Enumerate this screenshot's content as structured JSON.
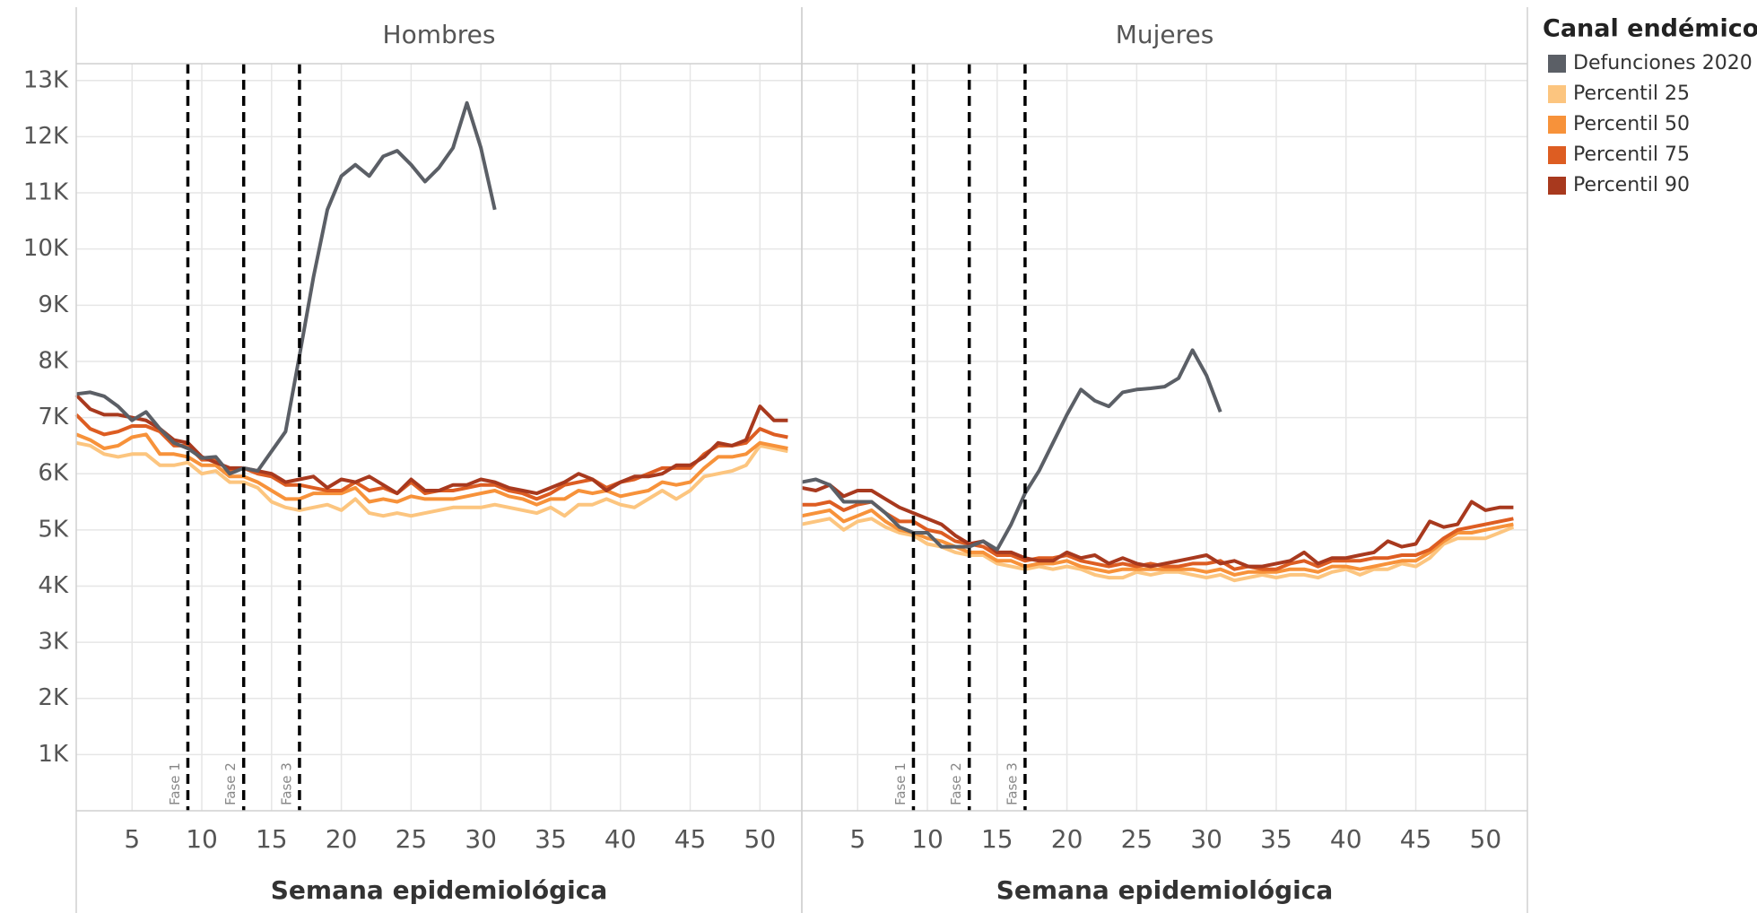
{
  "chart_data": [
    {
      "type": "line",
      "title": "Hombres",
      "x_label": "Semana epidemiológica",
      "legend_title": "Canal endémico",
      "x": [
        1,
        2,
        3,
        4,
        5,
        6,
        7,
        8,
        9,
        10,
        11,
        12,
        13,
        14,
        15,
        16,
        17,
        18,
        19,
        20,
        21,
        22,
        23,
        24,
        25,
        26,
        27,
        28,
        29,
        30,
        31,
        32,
        33,
        34,
        35,
        36,
        37,
        38,
        39,
        40,
        41,
        42,
        43,
        44,
        45,
        46,
        47,
        48,
        49,
        50,
        51,
        52
      ],
      "xlim": [
        1,
        53
      ],
      "xticks": [
        5,
        10,
        15,
        20,
        25,
        30,
        35,
        40,
        45,
        50
      ],
      "ylim": [
        0,
        13300
      ],
      "yticks": [
        {
          "value": 1000,
          "label": "1K"
        },
        {
          "value": 2000,
          "label": "2K"
        },
        {
          "value": 3000,
          "label": "3K"
        },
        {
          "value": 4000,
          "label": "4K"
        },
        {
          "value": 5000,
          "label": "5K"
        },
        {
          "value": 6000,
          "label": "6K"
        },
        {
          "value": 7000,
          "label": "7K"
        },
        {
          "value": 8000,
          "label": "8K"
        },
        {
          "value": 9000,
          "label": "9K"
        },
        {
          "value": 10000,
          "label": "10K"
        },
        {
          "value": 11000,
          "label": "11K"
        },
        {
          "value": 12000,
          "label": "12K"
        },
        {
          "value": 13000,
          "label": "13K"
        }
      ],
      "grid": true,
      "phases": [
        {
          "x": 9,
          "label": "Fase 1"
        },
        {
          "x": 13,
          "label": "Fase 2"
        },
        {
          "x": 17,
          "label": "Fase 3"
        }
      ],
      "series": [
        {
          "name": "Defunciones 2020",
          "color": "#5b5f66",
          "values": [
            7420,
            7450,
            7380,
            7200,
            6950,
            7100,
            6800,
            6550,
            6450,
            6280,
            6300,
            6000,
            6100,
            6050,
            6400,
            6750,
            8100,
            9500,
            10700,
            11300,
            11500,
            11300,
            11650,
            11750,
            11500,
            11200,
            11450,
            11800,
            12600,
            11800,
            10700,
            null,
            null,
            null,
            null,
            null,
            null,
            null,
            null,
            null,
            null,
            null,
            null,
            null,
            null,
            null,
            null,
            null,
            null,
            null,
            null,
            null
          ]
        },
        {
          "name": "Percentil 25",
          "color": "#fcc57f",
          "values": [
            6550,
            6500,
            6350,
            6300,
            6350,
            6350,
            6150,
            6150,
            6200,
            6000,
            6050,
            5850,
            5850,
            5750,
            5500,
            5400,
            5350,
            5400,
            5450,
            5350,
            5550,
            5300,
            5250,
            5300,
            5250,
            5300,
            5350,
            5400,
            5400,
            5400,
            5450,
            5400,
            5350,
            5300,
            5400,
            5250,
            5450,
            5450,
            5550,
            5450,
            5400,
            5550,
            5700,
            5550,
            5700,
            5950,
            6000,
            6050,
            6150,
            6500,
            6450,
            6400
          ]
        },
        {
          "name": "Percentil 50",
          "color": "#f7923a",
          "values": [
            6700,
            6600,
            6450,
            6500,
            6650,
            6700,
            6350,
            6350,
            6300,
            6150,
            6150,
            5950,
            5950,
            5850,
            5700,
            5550,
            5550,
            5650,
            5650,
            5650,
            5750,
            5500,
            5550,
            5500,
            5600,
            5550,
            5550,
            5550,
            5600,
            5650,
            5700,
            5600,
            5550,
            5450,
            5550,
            5550,
            5700,
            5650,
            5700,
            5600,
            5650,
            5700,
            5850,
            5800,
            5850,
            6100,
            6300,
            6300,
            6350,
            6550,
            6500,
            6450
          ]
        },
        {
          "name": "Percentil 75",
          "color": "#dd5d22",
          "values": [
            7050,
            6800,
            6700,
            6750,
            6850,
            6850,
            6750,
            6500,
            6500,
            6250,
            6250,
            6050,
            6100,
            6000,
            5950,
            5800,
            5800,
            5750,
            5700,
            5700,
            5850,
            5700,
            5750,
            5650,
            5850,
            5650,
            5700,
            5700,
            5750,
            5800,
            5800,
            5700,
            5650,
            5550,
            5650,
            5800,
            5850,
            5900,
            5750,
            5850,
            5900,
            6000,
            6100,
            6100,
            6100,
            6350,
            6500,
            6500,
            6550,
            6800,
            6700,
            6650
          ]
        },
        {
          "name": "Percentil 90",
          "color": "#a8391e",
          "values": [
            7400,
            7150,
            7050,
            7050,
            7000,
            6950,
            6800,
            6600,
            6550,
            6300,
            6200,
            6100,
            6100,
            6050,
            6000,
            5850,
            5900,
            5950,
            5750,
            5900,
            5850,
            5950,
            5800,
            5650,
            5900,
            5700,
            5700,
            5800,
            5800,
            5900,
            5850,
            5750,
            5700,
            5650,
            5750,
            5850,
            6000,
            5900,
            5700,
            5850,
            5950,
            5950,
            6000,
            6150,
            6150,
            6300,
            6550,
            6500,
            6600,
            7200,
            6950,
            6950
          ]
        }
      ]
    },
    {
      "type": "line",
      "title": "Mujeres",
      "x_label": "Semana epidemiológica",
      "x": [
        1,
        2,
        3,
        4,
        5,
        6,
        7,
        8,
        9,
        10,
        11,
        12,
        13,
        14,
        15,
        16,
        17,
        18,
        19,
        20,
        21,
        22,
        23,
        24,
        25,
        26,
        27,
        28,
        29,
        30,
        31,
        32,
        33,
        34,
        35,
        36,
        37,
        38,
        39,
        40,
        41,
        42,
        43,
        44,
        45,
        46,
        47,
        48,
        49,
        50,
        51,
        52
      ],
      "xlim": [
        1,
        53
      ],
      "xticks": [
        5,
        10,
        15,
        20,
        25,
        30,
        35,
        40,
        45,
        50
      ],
      "phases": [
        {
          "x": 9,
          "label": "Fase 1"
        },
        {
          "x": 13,
          "label": "Fase 2"
        },
        {
          "x": 17,
          "label": "Fase 3"
        }
      ],
      "series": [
        {
          "color": "#5b5f66",
          "values": [
            5850,
            5900,
            5800,
            5500,
            5500,
            5500,
            5300,
            5050,
            4950,
            4950,
            4700,
            4700,
            4700,
            4800,
            4650,
            5100,
            5650,
            6050,
            6550,
            7050,
            7500,
            7300,
            7200,
            7450,
            7500,
            7520,
            7550,
            7700,
            8200,
            7750,
            7100,
            null,
            null,
            null,
            null,
            null,
            null,
            null,
            null,
            null,
            null,
            null,
            null,
            null,
            null,
            null,
            null,
            null,
            null,
            null,
            null,
            null
          ]
        },
        {
          "color": "#fcc57f",
          "values": [
            5100,
            5150,
            5200,
            5000,
            5150,
            5200,
            5050,
            4950,
            4900,
            4750,
            4700,
            4600,
            4550,
            4550,
            4400,
            4350,
            4300,
            4350,
            4300,
            4350,
            4300,
            4200,
            4150,
            4150,
            4250,
            4200,
            4250,
            4250,
            4200,
            4150,
            4200,
            4100,
            4150,
            4200,
            4150,
            4200,
            4200,
            4150,
            4250,
            4300,
            4200,
            4300,
            4300,
            4400,
            4350,
            4500,
            4750,
            4850,
            4850,
            4850,
            4950,
            5050
          ]
        },
        {
          "color": "#f7923a",
          "values": [
            5250,
            5300,
            5350,
            5150,
            5250,
            5350,
            5150,
            5000,
            4950,
            4850,
            4800,
            4700,
            4600,
            4600,
            4450,
            4450,
            4350,
            4400,
            4400,
            4450,
            4350,
            4300,
            4250,
            4300,
            4300,
            4300,
            4300,
            4300,
            4300,
            4250,
            4300,
            4200,
            4250,
            4250,
            4250,
            4300,
            4300,
            4250,
            4350,
            4350,
            4300,
            4350,
            4400,
            4450,
            4450,
            4600,
            4800,
            4950,
            4950,
            5000,
            5050,
            5100
          ]
        },
        {
          "color": "#dd5d22",
          "values": [
            5450,
            5450,
            5500,
            5350,
            5450,
            5500,
            5300,
            5150,
            5150,
            5000,
            4950,
            4800,
            4750,
            4700,
            4550,
            4550,
            4450,
            4500,
            4500,
            4550,
            4450,
            4400,
            4350,
            4400,
            4350,
            4400,
            4350,
            4350,
            4400,
            4400,
            4450,
            4300,
            4350,
            4300,
            4300,
            4400,
            4450,
            4350,
            4450,
            4450,
            4450,
            4500,
            4500,
            4550,
            4550,
            4650,
            4850,
            5000,
            5050,
            5100,
            5150,
            5200
          ]
        },
        {
          "color": "#a8391e",
          "values": [
            5750,
            5700,
            5800,
            5600,
            5700,
            5700,
            5550,
            5400,
            5300,
            5200,
            5100,
            4900,
            4750,
            4800,
            4600,
            4600,
            4500,
            4450,
            4450,
            4600,
            4500,
            4550,
            4400,
            4500,
            4400,
            4350,
            4400,
            4450,
            4500,
            4550,
            4400,
            4450,
            4350,
            4350,
            4400,
            4450,
            4600,
            4400,
            4500,
            4500,
            4550,
            4600,
            4800,
            4700,
            4750,
            5150,
            5050,
            5100,
            5500,
            5350,
            5400,
            5400
          ]
        }
      ]
    }
  ]
}
